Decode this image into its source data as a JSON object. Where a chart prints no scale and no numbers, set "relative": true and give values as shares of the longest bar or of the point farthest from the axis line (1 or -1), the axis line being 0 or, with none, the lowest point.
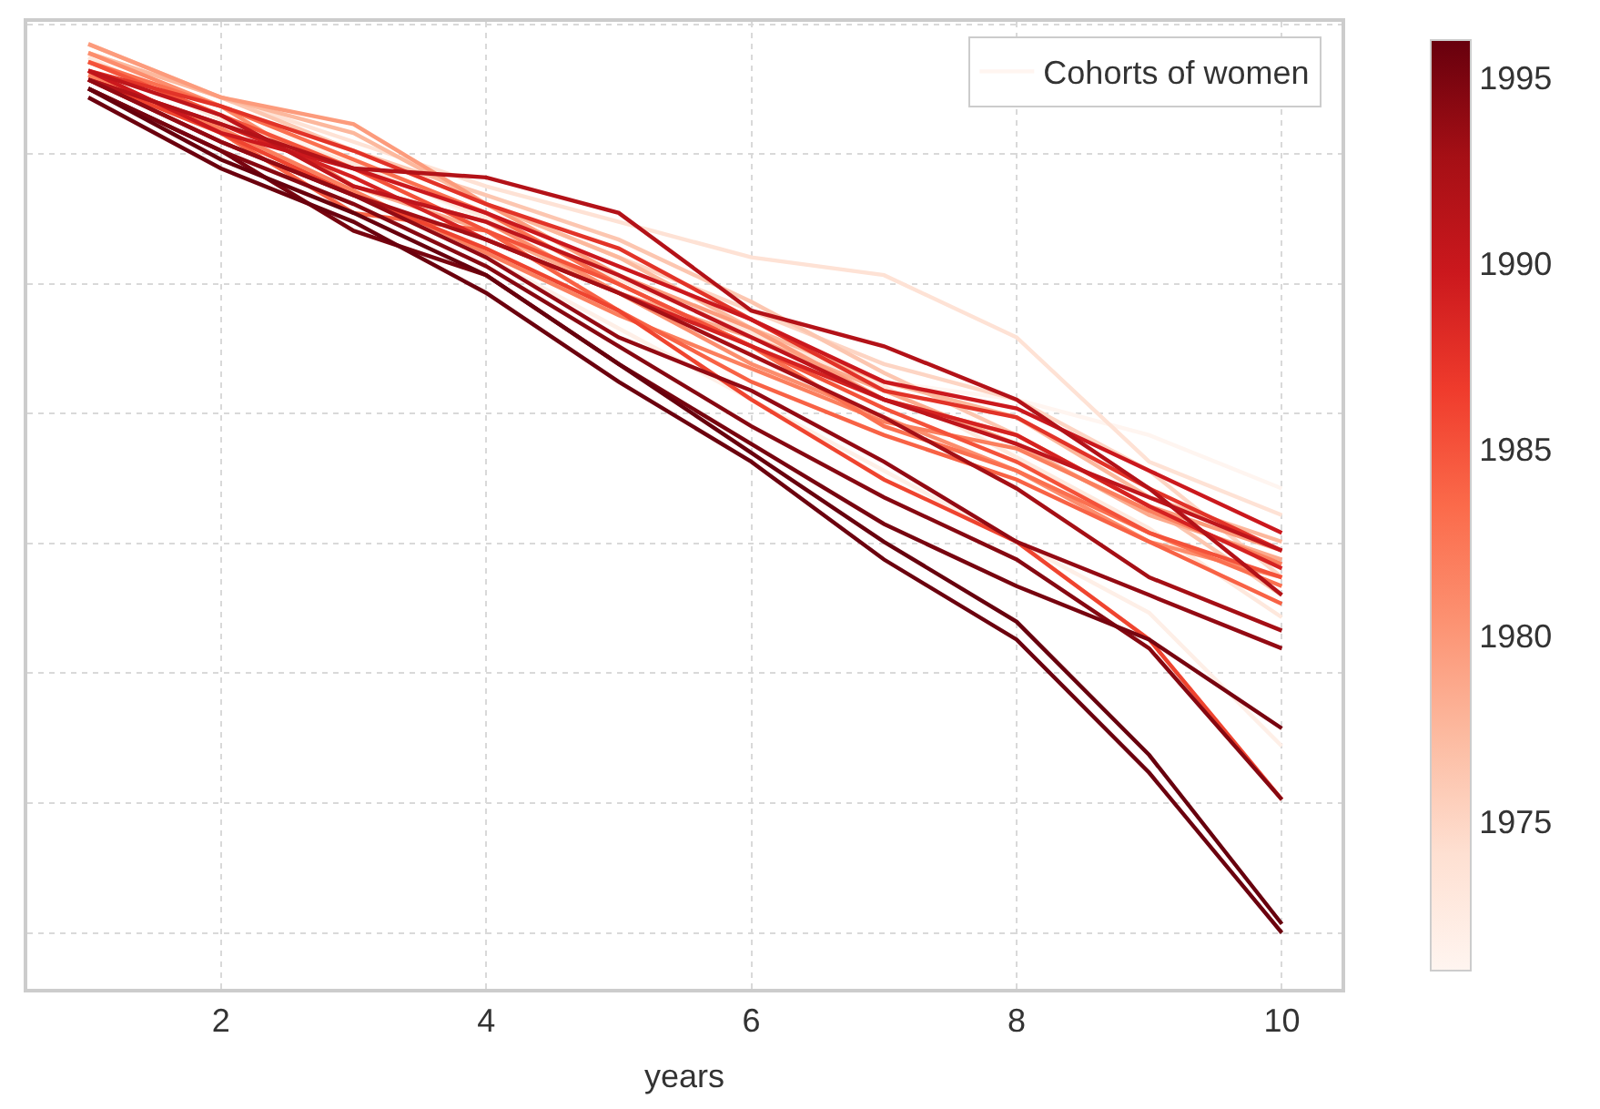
{
  "chart_data": {
    "type": "line",
    "xlabel": "years",
    "x": [
      1,
      2,
      3,
      4,
      5,
      6,
      7,
      8,
      9,
      10
    ],
    "xlim": [
      0.54,
      10.45
    ],
    "xticks": [
      2,
      4,
      6,
      8,
      10
    ],
    "relative": true,
    "grid": true,
    "legend": "top right",
    "line_style": "solid",
    "clim": [
      1971,
      1996
    ],
    "cticks": [
      1975,
      1980,
      1985,
      1990,
      1995
    ],
    "series": [
      {
        "name": "Cohorts of women",
        "color": "#fff5f0",
        "values": [
          0.97,
          0.92,
          0.87,
          0.8,
          0.74,
          0.68,
          0.62,
          0.6,
          0.56,
          0.5
        ]
      },
      {
        "color": "#feefe7",
        "values": [
          0.96,
          0.9,
          0.83,
          0.76,
          0.68,
          0.6,
          0.52,
          0.44,
          0.36,
          0.21
        ]
      },
      {
        "color": "#fee8dd",
        "values": [
          0.985,
          0.915,
          0.865,
          0.805,
          0.735,
          0.675,
          0.615,
          0.535,
          0.455,
          0.355
        ]
      },
      {
        "color": "#fee2d5",
        "values": [
          0.99,
          0.94,
          0.89,
          0.84,
          0.8,
          0.76,
          0.74,
          0.67,
          0.53,
          0.47
        ]
      },
      {
        "color": "#fdd5c4",
        "values": [
          0.98,
          0.93,
          0.88,
          0.82,
          0.76,
          0.7,
          0.64,
          0.6,
          0.52,
          0.4
        ]
      },
      {
        "color": "#fcc6b0",
        "values": [
          1.0,
          0.94,
          0.88,
          0.83,
          0.78,
          0.71,
          0.63,
          0.56,
          0.48,
          0.38
        ]
      },
      {
        "color": "#fcb89d",
        "values": [
          0.99,
          0.94,
          0.9,
          0.82,
          0.76,
          0.68,
          0.62,
          0.58,
          0.49,
          0.44
        ]
      },
      {
        "color": "#fcaa8d",
        "values": [
          0.98,
          0.92,
          0.84,
          0.79,
          0.72,
          0.67,
          0.61,
          0.55,
          0.47,
          0.42
        ]
      },
      {
        "color": "#fc9b7c",
        "values": [
          1.0,
          0.94,
          0.91,
          0.82,
          0.74,
          0.68,
          0.6,
          0.56,
          0.48,
          0.43
        ]
      },
      {
        "color": "#fc8d6d",
        "values": [
          0.99,
          0.93,
          0.84,
          0.8,
          0.72,
          0.64,
          0.58,
          0.52,
          0.44,
          0.4
        ]
      },
      {
        "color": "#fb7f5e",
        "values": [
          0.965,
          0.905,
          0.835,
          0.765,
          0.695,
          0.635,
          0.575,
          0.545,
          0.475,
          0.415
        ]
      },
      {
        "color": "#fb7050",
        "values": [
          0.98,
          0.93,
          0.87,
          0.81,
          0.73,
          0.66,
          0.57,
          0.52,
          0.45,
          0.39
        ]
      },
      {
        "color": "#f86245",
        "values": [
          0.97,
          0.9,
          0.81,
          0.79,
          0.7,
          0.62,
          0.56,
          0.51,
          0.44,
          0.37
        ]
      },
      {
        "color": "#f4523a",
        "values": [
          0.98,
          0.92,
          0.86,
          0.79,
          0.73,
          0.66,
          0.59,
          0.53,
          0.45,
          0.4
        ]
      },
      {
        "color": "#ef442f",
        "values": [
          0.96,
          0.9,
          0.83,
          0.77,
          0.7,
          0.6,
          0.51,
          0.44,
          0.33,
          0.15
        ]
      },
      {
        "color": "#e23328",
        "values": [
          0.97,
          0.93,
          0.88,
          0.82,
          0.77,
          0.69,
          0.61,
          0.58,
          0.5,
          0.43
        ]
      },
      {
        "color": "#d52221",
        "values": [
          0.96,
          0.91,
          0.85,
          0.78,
          0.72,
          0.66,
          0.6,
          0.56,
          0.48,
          0.41
        ]
      },
      {
        "color": "#cb181d",
        "values": [
          0.97,
          0.9,
          0.86,
          0.81,
          0.75,
          0.69,
          0.62,
          0.59,
          0.52,
          0.45
        ]
      },
      {
        "color": "#bf151b",
        "values": [
          0.97,
          0.92,
          0.84,
          0.8,
          0.74,
          0.67,
          0.6,
          0.55,
          0.49,
          0.43
        ]
      },
      {
        "color": "#b31218",
        "values": [
          0.96,
          0.91,
          0.86,
          0.85,
          0.81,
          0.7,
          0.66,
          0.6,
          0.5,
          0.38
        ]
      },
      {
        "color": "#a50f15",
        "values": [
          0.96,
          0.89,
          0.83,
          0.78,
          0.72,
          0.65,
          0.58,
          0.5,
          0.4,
          0.34
        ]
      },
      {
        "color": "#930a13",
        "values": [
          0.96,
          0.89,
          0.83,
          0.76,
          0.67,
          0.61,
          0.53,
          0.44,
          0.38,
          0.32
        ]
      },
      {
        "color": "#860811",
        "values": [
          0.95,
          0.88,
          0.82,
          0.75,
          0.66,
          0.57,
          0.49,
          0.42,
          0.32,
          0.15
        ]
      },
      {
        "color": "#77040f",
        "values": [
          0.95,
          0.88,
          0.79,
          0.74,
          0.64,
          0.55,
          0.46,
          0.39,
          0.33,
          0.23
        ]
      },
      {
        "color": "#6b010e",
        "values": [
          0.94,
          0.86,
          0.8,
          0.72,
          0.62,
          0.53,
          0.42,
          0.33,
          0.18,
          0.0
        ]
      },
      {
        "color": "#67000d",
        "values": [
          0.95,
          0.87,
          0.81,
          0.74,
          0.64,
          0.54,
          0.44,
          0.35,
          0.2,
          0.01
        ]
      }
    ]
  }
}
